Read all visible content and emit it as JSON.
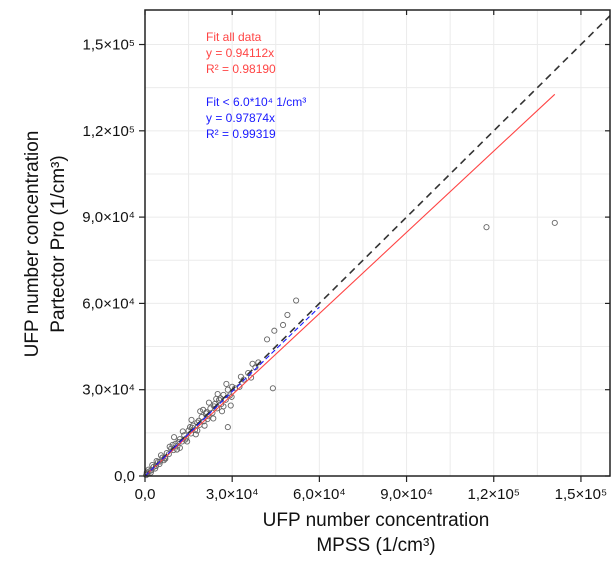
{
  "chart_data": {
    "type": "scatter",
    "title": "",
    "xlabel": [
      "UFP number concentration",
      "MPSS (1/cm³)"
    ],
    "ylabel": [
      "UFP number concentration",
      "Partector Pro (1/cm³)"
    ],
    "xlim": [
      0,
      160000
    ],
    "ylim": [
      0,
      162000
    ],
    "x_ticks": [
      0,
      30000,
      60000,
      90000,
      120000,
      150000
    ],
    "y_ticks": [
      0,
      30000,
      60000,
      90000,
      120000,
      150000
    ],
    "x_tick_labels": [
      "0,0",
      "3,0×10⁴",
      "6,0×10⁴",
      "9,0×10⁴",
      "1,2×10⁵",
      "1,5×10⁵"
    ],
    "y_tick_labels": [
      "0,0",
      "3,0×10⁴",
      "6,0×10⁴",
      "9,0×10⁴",
      "1,2×10⁵",
      "1,5×10⁵"
    ],
    "grid": true,
    "colors": {
      "fit_all": "#ff4444",
      "fit_low": "#1a1aff",
      "identity": "#333333",
      "points": "#666666"
    },
    "lines": [
      {
        "kind": "identity",
        "style": "dashed",
        "x": [
          0,
          160000
        ],
        "y": [
          0,
          160000
        ]
      },
      {
        "kind": "fit-all",
        "style": "solid",
        "slope": 0.94112,
        "x": [
          0,
          141000
        ]
      },
      {
        "kind": "fit-low",
        "style": "dashed",
        "slope": 0.97874,
        "x": [
          0,
          60000
        ]
      }
    ],
    "annotations": {
      "fit_all": {
        "lines": [
          "Fit all data",
          "y = 0.94112x",
          "R² = 0.98190"
        ]
      },
      "fit_low": {
        "lines": [
          "Fit < 6.0*10⁴ 1/cm³",
          "y = 0.97874x",
          "R² = 0.99319"
        ]
      }
    },
    "series": [
      {
        "points": [
          [
            800,
            700
          ],
          [
            1500,
            1600
          ],
          [
            2200,
            2000
          ],
          [
            3000,
            3200
          ],
          [
            3800,
            3500
          ],
          [
            4500,
            4900
          ],
          [
            5200,
            5000
          ],
          [
            6000,
            6400
          ],
          [
            6800,
            6300
          ],
          [
            7500,
            8000
          ],
          [
            8200,
            7600
          ],
          [
            9000,
            9500
          ],
          [
            9800,
            9000
          ],
          [
            10500,
            11200
          ],
          [
            11200,
            10500
          ],
          [
            12000,
            12800
          ],
          [
            12800,
            12000
          ],
          [
            13500,
            14200
          ],
          [
            14200,
            13100
          ],
          [
            15000,
            15800
          ],
          [
            15800,
            14800
          ],
          [
            16500,
            17500
          ],
          [
            17200,
            16000
          ],
          [
            18000,
            18600
          ],
          [
            18800,
            17800
          ],
          [
            19500,
            20500
          ],
          [
            20200,
            19000
          ],
          [
            21000,
            21800
          ],
          [
            21800,
            20800
          ],
          [
            22500,
            23500
          ],
          [
            23200,
            22000
          ],
          [
            24000,
            25000
          ],
          [
            24800,
            23500
          ],
          [
            25500,
            26500
          ],
          [
            26200,
            25000
          ],
          [
            27000,
            28200
          ],
          [
            27800,
            26500
          ],
          [
            28500,
            30000
          ],
          [
            29200,
            28000
          ],
          [
            30000,
            31000
          ],
          [
            4000,
            5200
          ],
          [
            6500,
            5500
          ],
          [
            8500,
            10200
          ],
          [
            11000,
            9200
          ],
          [
            13000,
            15500
          ],
          [
            14500,
            12000
          ],
          [
            16000,
            19500
          ],
          [
            17500,
            14500
          ],
          [
            19000,
            22500
          ],
          [
            20500,
            17500
          ],
          [
            22000,
            25500
          ],
          [
            23500,
            20000
          ],
          [
            25000,
            28500
          ],
          [
            26500,
            22500
          ],
          [
            28000,
            32000
          ],
          [
            29500,
            24500
          ],
          [
            10000,
            13500
          ],
          [
            12000,
            9800
          ],
          [
            15500,
            17000
          ],
          [
            18000,
            15800
          ],
          [
            20000,
            23000
          ],
          [
            21500,
            19800
          ],
          [
            24500,
            26800
          ],
          [
            27000,
            24200
          ],
          [
            29800,
            27500
          ],
          [
            31000,
            30500
          ],
          [
            32500,
            31000
          ],
          [
            34000,
            33500
          ],
          [
            35500,
            35800
          ],
          [
            36500,
            34200
          ],
          [
            38000,
            37800
          ],
          [
            39000,
            39500
          ],
          [
            37000,
            39000
          ],
          [
            33000,
            34500
          ],
          [
            28500,
            17000
          ],
          [
            44000,
            30500
          ],
          [
            42000,
            47500
          ],
          [
            44500,
            50500
          ],
          [
            47500,
            52500
          ],
          [
            49000,
            56000
          ],
          [
            52000,
            61000
          ],
          [
            117500,
            86500
          ],
          [
            141000,
            88000
          ],
          [
            2500,
            3800
          ],
          [
            5500,
            7200
          ],
          [
            7000,
            6000
          ],
          [
            9500,
            10800
          ],
          [
            11500,
            11800
          ],
          [
            13800,
            12600
          ],
          [
            16200,
            16800
          ],
          [
            18500,
            19200
          ],
          [
            21200,
            22200
          ],
          [
            23800,
            24200
          ],
          [
            26000,
            27000
          ],
          [
            2000,
            1200
          ],
          [
            3500,
            2600
          ],
          [
            5000,
            4200
          ],
          [
            1200,
            2200
          ],
          [
            400,
            300
          ],
          [
            600,
            1200
          ]
        ]
      }
    ]
  }
}
